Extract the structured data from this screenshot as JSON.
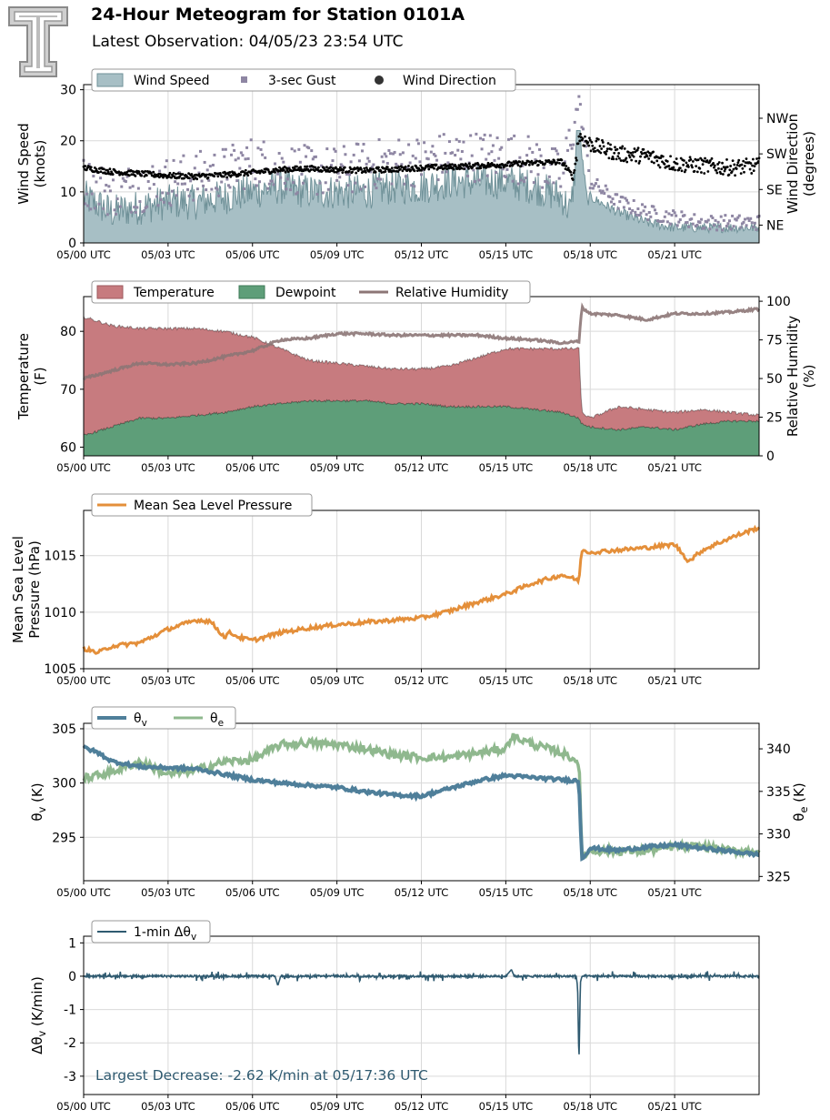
{
  "header": {
    "title": "24-Hour Meteogram for Station 0101A",
    "subtitle": "Latest Observation: 04/05/23 23:54 UTC",
    "logo": "texas-tech-double-t-logo"
  },
  "colors": {
    "wind_fill": "#a7bfc5",
    "wind_line": "#6f9198",
    "gust": "#8e86a3",
    "direction": "#000000",
    "temperature": "#c77b7f",
    "dewpoint": "#5e9e79",
    "rh": "#8c7676",
    "pressure": "#e48f3a",
    "theta_v": "#4f7f9a",
    "theta_e": "#8fb88e",
    "delta": "#2f5a70",
    "annotation": "#2f5a70",
    "grid": "#d9d9d9"
  },
  "x_ticks": [
    "05/00 UTC",
    "05/03 UTC",
    "05/06 UTC",
    "05/09 UTC",
    "05/12 UTC",
    "05/15 UTC",
    "05/18 UTC",
    "05/21 UTC"
  ],
  "chart_data": [
    {
      "type": "area",
      "id": "wind",
      "legend": [
        "Wind Speed",
        "3-sec Gust",
        "Wind Direction"
      ],
      "ylabel": [
        "Wind Speed",
        "(knots)"
      ],
      "ylabel_right": [
        "Wind Direction",
        "(degrees)"
      ],
      "ylim": [
        0,
        31
      ],
      "yticks": [
        0,
        10,
        20,
        30
      ],
      "ylim_right": [
        0,
        400
      ],
      "right_ticks": [
        {
          "v": 45,
          "t": "NE"
        },
        {
          "v": 135,
          "t": "SE"
        },
        {
          "v": 225,
          "t": "SW"
        },
        {
          "v": 315,
          "t": "NW"
        }
      ],
      "xlim_hours": [
        0,
        24
      ],
      "series": [
        {
          "name": "Wind Speed",
          "x": [
            0,
            1,
            2,
            3,
            4,
            5,
            6,
            7,
            8,
            9,
            10,
            11,
            12,
            13,
            14,
            15,
            16,
            17,
            17.3,
            17.6,
            17.9,
            18,
            19,
            20,
            21,
            22,
            23,
            24
          ],
          "values": [
            9,
            6,
            7,
            8,
            8,
            9,
            10,
            11,
            10,
            10,
            10,
            11,
            11,
            12,
            12,
            12,
            11,
            9,
            6,
            22,
            8,
            9,
            6,
            4,
            3,
            3,
            3,
            3
          ]
        },
        {
          "name": "3-sec Gust",
          "x": [
            0,
            1,
            2,
            3,
            4,
            5,
            6,
            7,
            8,
            9,
            10,
            11,
            12,
            13,
            14,
            15,
            16,
            17,
            17.6,
            18,
            19,
            20,
            21,
            22,
            23,
            24
          ],
          "values": [
            12,
            10,
            11,
            12,
            13,
            14,
            16,
            15,
            14,
            14,
            15,
            16,
            16,
            17,
            17,
            17,
            16,
            13,
            28,
            12,
            8,
            6,
            5,
            4,
            4,
            4
          ]
        },
        {
          "name": "Wind Direction",
          "x": [
            0,
            1,
            2,
            3,
            4,
            5,
            6,
            7,
            8,
            9,
            10,
            11,
            12,
            13,
            14,
            15,
            16,
            17,
            17.4,
            17.6,
            18,
            19,
            20,
            21,
            22,
            23,
            24
          ],
          "values": [
            190,
            180,
            175,
            170,
            168,
            172,
            178,
            185,
            188,
            185,
            183,
            186,
            190,
            192,
            195,
            198,
            202,
            205,
            165,
            270,
            250,
            225,
            220,
            200,
            195,
            190,
            195
          ]
        }
      ]
    },
    {
      "type": "area",
      "id": "temp",
      "legend": [
        "Temperature",
        "Dewpoint",
        "Relative Humidity"
      ],
      "ylabel": [
        "Temperature",
        "(F)"
      ],
      "ylabel_right": [
        "Relative Humidity",
        "(%)"
      ],
      "ylim": [
        58.5,
        86
      ],
      "yticks": [
        60,
        70,
        80
      ],
      "ylim_right": [
        0,
        103
      ],
      "right_ticks": [
        {
          "v": 0,
          "t": "0"
        },
        {
          "v": 25,
          "t": "25"
        },
        {
          "v": 50,
          "t": "50"
        },
        {
          "v": 75,
          "t": "75"
        },
        {
          "v": 100,
          "t": "100"
        }
      ],
      "xlim_hours": [
        0,
        24
      ],
      "series": [
        {
          "name": "Temperature",
          "x": [
            0,
            1,
            2,
            3,
            4,
            5,
            6,
            7,
            8,
            9,
            10,
            11,
            12,
            13,
            14,
            15,
            16,
            17,
            17.6,
            17.7,
            18,
            19,
            20,
            21,
            22,
            23,
            24
          ],
          "values": [
            82.5,
            81,
            80.5,
            80.5,
            80.5,
            80,
            79,
            77,
            75,
            74.5,
            74,
            73.5,
            73.5,
            74,
            75.5,
            77,
            77,
            77,
            77,
            66,
            65,
            67,
            66.5,
            66,
            66.5,
            66,
            65.5
          ]
        },
        {
          "name": "Dewpoint",
          "x": [
            0,
            1,
            2,
            3,
            4,
            5,
            6,
            7,
            8,
            9,
            10,
            11,
            12,
            13,
            14,
            15,
            16,
            17,
            17.6,
            17.7,
            18,
            19,
            20,
            21,
            22,
            23,
            24
          ],
          "values": [
            62,
            63.5,
            65,
            65,
            65.5,
            66,
            67,
            67.5,
            68,
            68,
            68,
            67.5,
            67.5,
            67,
            67,
            67,
            66.5,
            66,
            65,
            64,
            63.5,
            63,
            63.5,
            63,
            64,
            64.5,
            64.5
          ]
        },
        {
          "name": "Relative Humidity",
          "x": [
            0,
            1,
            2,
            3,
            4,
            5,
            6,
            7,
            8,
            9,
            10,
            11,
            12,
            13,
            14,
            15,
            16,
            17,
            17.6,
            17.7,
            18,
            19,
            20,
            21,
            22,
            23,
            24
          ],
          "values": [
            50,
            55,
            60,
            59,
            60,
            64,
            68,
            75,
            76,
            79,
            79,
            78,
            78,
            78,
            78,
            76,
            75,
            73,
            74,
            96,
            92,
            91,
            88,
            92,
            92,
            93,
            95
          ]
        }
      ]
    },
    {
      "type": "line",
      "id": "pressure",
      "legend": [
        "Mean Sea Level Pressure"
      ],
      "ylabel": [
        "Mean Sea Level",
        "Pressure (hPa)"
      ],
      "ylim": [
        1005,
        1019
      ],
      "yticks": [
        1005,
        1010,
        1015
      ],
      "xlim_hours": [
        0,
        24
      ],
      "series": [
        {
          "name": "Mean Sea Level Pressure",
          "x": [
            0,
            0.5,
            1,
            2,
            3,
            4,
            4.5,
            5,
            5.2,
            5.5,
            6,
            7,
            8,
            9,
            10,
            11,
            12,
            13,
            14,
            15,
            16,
            17,
            17.6,
            17.7,
            18,
            19,
            20,
            21,
            21.5,
            22,
            23,
            24
          ],
          "values": [
            1006.8,
            1006.4,
            1007,
            1007.3,
            1008.5,
            1009.3,
            1009.2,
            1007.8,
            1008.2,
            1007.8,
            1007.5,
            1008.2,
            1008.6,
            1008.9,
            1009.1,
            1009.3,
            1009.5,
            1010.1,
            1010.9,
            1011.6,
            1012.6,
            1013.3,
            1012.8,
            1015.5,
            1015.3,
            1015.5,
            1015.7,
            1016,
            1014.5,
            1015.5,
            1016.6,
            1017.5
          ]
        }
      ]
    },
    {
      "type": "line",
      "id": "theta",
      "legend": [
        "θv",
        "θe"
      ],
      "ylabel": [
        "θv (K)"
      ],
      "ylabel_right": [
        "θe (K)"
      ],
      "ylim": [
        291,
        305.5
      ],
      "yticks": [
        295,
        300,
        305
      ],
      "ylim_right": [
        324.5,
        343
      ],
      "right_ticks": [
        {
          "v": 325,
          "t": "325"
        },
        {
          "v": 330,
          "t": "330"
        },
        {
          "v": 335,
          "t": "335"
        },
        {
          "v": 340,
          "t": "340"
        }
      ],
      "xlim_hours": [
        0,
        24
      ],
      "series": [
        {
          "name": "θv",
          "axis": "left",
          "x": [
            0,
            0.5,
            1,
            2,
            3,
            4,
            5,
            6,
            7,
            8,
            9,
            10,
            11,
            12,
            13,
            14,
            15,
            16,
            17,
            17.6,
            17.7,
            18,
            19,
            20,
            21,
            22,
            23,
            24
          ],
          "values": [
            303.3,
            302.8,
            302,
            301.5,
            301.4,
            301.3,
            300.8,
            300.3,
            300,
            299.8,
            299.6,
            299.2,
            298.9,
            298.8,
            299.5,
            300.2,
            300.7,
            300.5,
            300.3,
            300.2,
            293,
            294,
            293.8,
            294.1,
            294.3,
            294,
            293.7,
            293.4
          ]
        },
        {
          "name": "θe",
          "axis": "right",
          "x": [
            0,
            1,
            2,
            3,
            4,
            5,
            6,
            7,
            8,
            9,
            10,
            11,
            12,
            13,
            14,
            15,
            15.2,
            16,
            17,
            17.6,
            17.7,
            18,
            19,
            20,
            21,
            22,
            23,
            24
          ],
          "values": [
            336.5,
            337.3,
            338.5,
            337,
            337.5,
            338.5,
            338.7,
            340.5,
            340.7,
            340.5,
            340,
            339.3,
            339,
            339,
            339.5,
            340,
            341.5,
            340.5,
            339.5,
            338.5,
            327.5,
            328,
            328,
            328,
            328.5,
            328.5,
            328,
            328
          ]
        }
      ]
    },
    {
      "type": "line",
      "id": "delta",
      "legend": [
        "1-min Δθv"
      ],
      "ylabel": [
        "Δθv (K/min)"
      ],
      "ylim": [
        -3.55,
        1.2
      ],
      "yticks": [
        -3,
        -2,
        -1,
        0,
        1
      ],
      "xlim_hours": [
        0,
        24
      ],
      "annotation": "Largest Decrease: -2.62 K/min at 05/17:36 UTC",
      "series": [
        {
          "name": "1-min Δθv",
          "x": [
            0,
            5,
            6.8,
            6.9,
            7,
            15,
            15.2,
            15.3,
            17.5,
            17.55,
            17.6,
            17.65,
            17.7,
            24
          ],
          "values": [
            0,
            0,
            0,
            -0.28,
            0,
            0,
            0.2,
            0,
            0,
            -0.3,
            -2.62,
            -0.2,
            0,
            0
          ]
        }
      ]
    }
  ]
}
